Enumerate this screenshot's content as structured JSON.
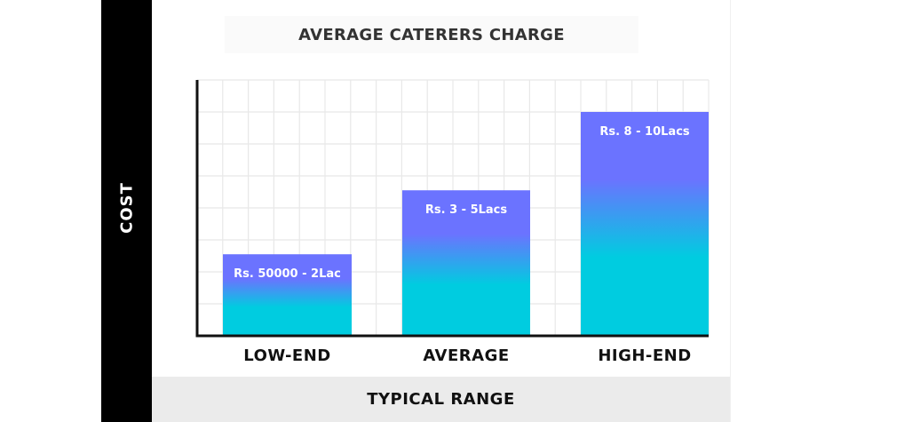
{
  "chart_data": {
    "type": "bar",
    "title": "AVERAGE CATERERS CHARGE",
    "xlabel": "TYPICAL RANGE",
    "ylabel": "COST",
    "categories": [
      "LOW-END",
      "AVERAGE",
      "HIGH-END"
    ],
    "values": [
      2.55,
      4.55,
      7.0
    ],
    "value_units": "relative (grid rows)",
    "data_labels": [
      "Rs. 50000 - 2Lac",
      "Rs. 3 - 5Lacs",
      "Rs. 8 - 10Lacs"
    ],
    "ylim": [
      0,
      8
    ],
    "grid": true,
    "legend": "none",
    "colors": {
      "bar_top": "#6b73ff",
      "bar_bottom": "#00cce0",
      "axis": "#111111",
      "grid": "#e8e8e8"
    }
  }
}
